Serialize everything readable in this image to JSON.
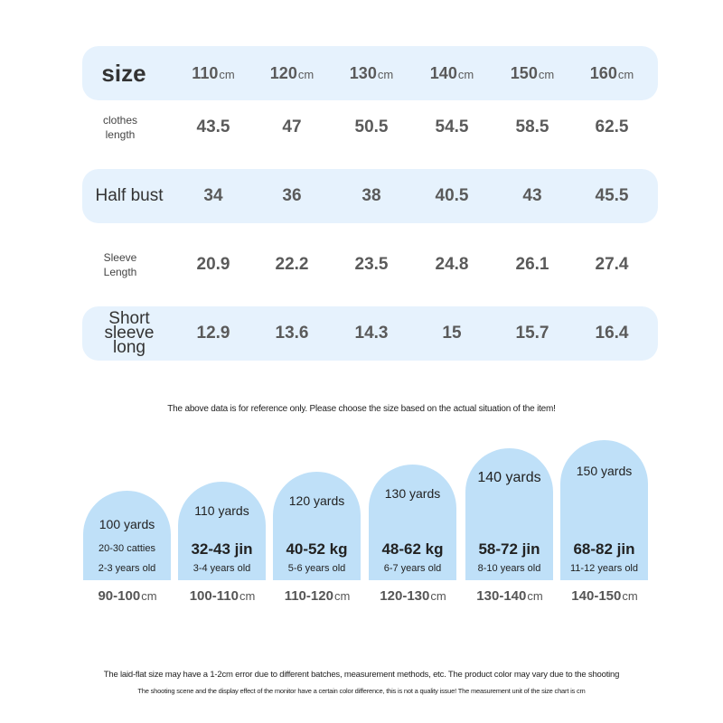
{
  "table": {
    "header": {
      "label": "size",
      "columns": [
        {
          "number": "110",
          "unit": "cm"
        },
        {
          "number": "120",
          "unit": "cm"
        },
        {
          "number": "130",
          "unit": "cm"
        },
        {
          "number": "140",
          "unit": "cm"
        },
        {
          "number": "150",
          "unit": "cm"
        },
        {
          "number": "160",
          "unit": "cm"
        }
      ]
    },
    "rows": [
      {
        "label": "clothes length",
        "values": [
          "43.5",
          "47",
          "50.5",
          "54.5",
          "58.5",
          "62.5"
        ]
      },
      {
        "label": "Half bust",
        "values": [
          "34",
          "36",
          "38",
          "40.5",
          "43",
          "45.5"
        ]
      },
      {
        "label": "Sleeve Length",
        "values": [
          "20.9",
          "22.2",
          "23.5",
          "24.8",
          "26.1",
          "27.4"
        ]
      },
      {
        "label": "Short sleeve long",
        "values": [
          "12.9",
          "13.6",
          "14.3",
          "15",
          "15.7",
          "16.4"
        ]
      }
    ]
  },
  "note": "The above data is for reference only. Please choose the size based on the actual situation of the item!",
  "cards": [
    {
      "title": "100 yards",
      "weight": "20-30 catties",
      "age": "2-3 years old",
      "range": {
        "number": "90-100",
        "unit": "cm"
      }
    },
    {
      "title": "110 yards",
      "weight": "32-43 jin",
      "age": "3-4 years old",
      "range": {
        "number": "100-110",
        "unit": "cm"
      }
    },
    {
      "title": "120 yards",
      "weight": "40-52 kg",
      "age": "5-6 years old",
      "range": {
        "number": "110-120",
        "unit": "cm"
      }
    },
    {
      "title": "130 yards",
      "weight": "48-62 kg",
      "age": "6-7 years old",
      "range": {
        "number": "120-130",
        "unit": "cm"
      }
    },
    {
      "title": "140 yards",
      "weight": "58-72 jin",
      "age": "8-10 years old",
      "range": {
        "number": "130-140",
        "unit": "cm"
      }
    },
    {
      "title": "150 yards",
      "weight": "68-82 jin",
      "age": "11-12 years old",
      "range": {
        "number": "140-150",
        "unit": "cm"
      }
    }
  ],
  "footer": [
    "The laid-flat size may have a 1-2cm error due to different batches, measurement methods, etc. The product color may vary due to the shooting",
    "The shooting scene and the display effect of the monitor have a certain color difference, this is not a quality issue! The measurement unit of the size chart is cm"
  ]
}
